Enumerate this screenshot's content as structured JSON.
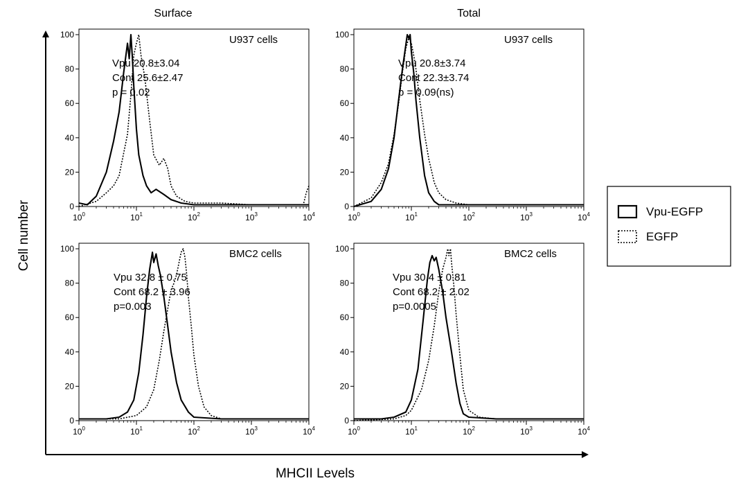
{
  "figure": {
    "column_titles": [
      "Surface",
      "Total"
    ],
    "y_axis_title": "Cell number",
    "x_axis_title": "MHCII Levels",
    "legend": [
      {
        "label": "Vpu-EGFP",
        "style": "solid"
      },
      {
        "label": "EGFP",
        "style": "dotted"
      }
    ],
    "colors": {
      "line": "#000000",
      "background": "#ffffff"
    }
  },
  "chart_data": [
    {
      "type": "line",
      "column_title": "Surface",
      "title": "U937 cells",
      "annotations": [
        "Vpu   20.8±3.04",
        "Cont   25.6±2.47",
        "p = 0.02"
      ],
      "x_scale": "log",
      "xlim": [
        1,
        10000
      ],
      "ylim": [
        0,
        100
      ],
      "x_tick_labels": [
        "10^0",
        "10^1",
        "10^2",
        "10^3",
        "10^4"
      ],
      "y_tick_labels": [
        "0",
        "20",
        "40",
        "60",
        "80",
        "100"
      ],
      "series": [
        {
          "legend": "Vpu-EGFP",
          "style": "solid",
          "x": [
            1,
            1.4,
            2,
            3,
            4,
            5,
            6,
            7,
            7.5,
            8,
            8.5,
            9,
            10,
            11,
            13,
            15,
            18,
            22,
            30,
            40,
            60,
            100,
            300,
            1000,
            10000
          ],
          "y": [
            2,
            1,
            6,
            20,
            38,
            55,
            78,
            95,
            86,
            100,
            87,
            70,
            45,
            30,
            18,
            12,
            8,
            10,
            7,
            4,
            2,
            1,
            1,
            1,
            1
          ]
        },
        {
          "legend": "EGFP",
          "style": "dotted",
          "x": [
            1,
            2,
            3,
            4,
            5,
            7,
            8,
            9,
            10,
            11,
            12,
            14,
            17,
            20,
            25,
            30,
            35,
            40,
            50,
            70,
            100,
            300,
            1000,
            8000,
            9000,
            10000
          ],
          "y": [
            0,
            3,
            8,
            12,
            18,
            42,
            65,
            88,
            95,
            100,
            88,
            75,
            50,
            30,
            24,
            28,
            22,
            12,
            6,
            3,
            2,
            2,
            1,
            1,
            8,
            12
          ]
        }
      ]
    },
    {
      "type": "line",
      "column_title": "Total",
      "title": "U937 cells",
      "annotations": [
        "Vpu   20.8±3.74",
        "Cont   22.3±3.74",
        "p = 0.09(ns)"
      ],
      "x_scale": "log",
      "xlim": [
        1,
        10000
      ],
      "ylim": [
        0,
        100
      ],
      "x_tick_labels": [
        "10^0",
        "10^1",
        "10^2",
        "10^3",
        "10^4"
      ],
      "y_tick_labels": [
        "0",
        "20",
        "40",
        "60",
        "80",
        "100"
      ],
      "series": [
        {
          "legend": "Vpu-EGFP",
          "style": "solid",
          "x": [
            1,
            2,
            3,
            4,
            5,
            6,
            7,
            8,
            8.5,
            9,
            9.5,
            10,
            11,
            12,
            14,
            17,
            20,
            25,
            30,
            50,
            100,
            1000,
            10000
          ],
          "y": [
            0,
            3,
            10,
            22,
            40,
            62,
            80,
            94,
            100,
            98,
            100,
            90,
            78,
            62,
            40,
            18,
            8,
            3,
            1,
            1,
            1,
            1,
            1
          ]
        },
        {
          "legend": "EGFP",
          "style": "dotted",
          "x": [
            1,
            2,
            3,
            4,
            5,
            6,
            7,
            8,
            9,
            10,
            11,
            12,
            14,
            17,
            20,
            25,
            30,
            40,
            60,
            100,
            1000,
            10000
          ],
          "y": [
            0,
            5,
            14,
            25,
            42,
            60,
            78,
            92,
            98,
            95,
            88,
            80,
            62,
            42,
            28,
            14,
            8,
            4,
            2,
            1,
            1,
            1
          ]
        }
      ]
    },
    {
      "type": "line",
      "column_title": "Surface",
      "title": "BMC2 cells",
      "annotations": [
        "Vpu  32.8 ± 0.75",
        "Cont 68.2 ± 3.96",
        "p=0.003"
      ],
      "x_scale": "log",
      "xlim": [
        1,
        10000
      ],
      "ylim": [
        0,
        100
      ],
      "x_tick_labels": [
        "10^0",
        "10^1",
        "10^2",
        "10^3",
        "10^4"
      ],
      "y_tick_labels": [
        "0",
        "20",
        "40",
        "60",
        "80",
        "100"
      ],
      "series": [
        {
          "legend": "Vpu-EGFP",
          "style": "solid",
          "x": [
            1,
            3,
            5,
            7,
            9,
            11,
            13,
            15,
            17,
            19,
            20,
            22,
            24,
            26,
            30,
            35,
            40,
            50,
            60,
            80,
            100,
            300,
            1000,
            10000
          ],
          "y": [
            1,
            1,
            2,
            5,
            12,
            28,
            50,
            72,
            88,
            98,
            92,
            97,
            90,
            85,
            72,
            55,
            40,
            22,
            12,
            5,
            2,
            1,
            1,
            1
          ]
        },
        {
          "legend": "EGFP",
          "style": "dotted",
          "x": [
            1,
            5,
            10,
            15,
            20,
            25,
            30,
            35,
            40,
            45,
            50,
            55,
            60,
            65,
            70,
            75,
            80,
            90,
            100,
            120,
            150,
            200,
            300,
            1000,
            10000
          ],
          "y": [
            1,
            1,
            3,
            8,
            18,
            35,
            52,
            65,
            76,
            80,
            85,
            92,
            98,
            100,
            95,
            85,
            72,
            55,
            38,
            20,
            8,
            3,
            1,
            1,
            1
          ]
        }
      ]
    },
    {
      "type": "line",
      "column_title": "Total",
      "title": "BMC2 cells",
      "annotations": [
        "Vpu  30.4 ± 0.81",
        "Cont 68.2 ± 2.02",
        "p=0.0005"
      ],
      "x_scale": "log",
      "xlim": [
        1,
        10000
      ],
      "ylim": [
        0,
        100
      ],
      "x_tick_labels": [
        "10^0",
        "10^1",
        "10^2",
        "10^3",
        "10^4"
      ],
      "y_tick_labels": [
        "0",
        "20",
        "40",
        "60",
        "80",
        "100"
      ],
      "series": [
        {
          "legend": "Vpu-EGFP",
          "style": "solid",
          "x": [
            1,
            3,
            5,
            8,
            10,
            13,
            16,
            19,
            21,
            23,
            25,
            27,
            30,
            35,
            40,
            50,
            60,
            70,
            80,
            100,
            300,
            1000,
            10000
          ],
          "y": [
            1,
            1,
            2,
            5,
            12,
            30,
            58,
            82,
            92,
            96,
            93,
            95,
            88,
            75,
            60,
            40,
            22,
            10,
            4,
            2,
            1,
            1,
            1
          ]
        },
        {
          "legend": "EGFP",
          "style": "dotted",
          "x": [
            1,
            5,
            8,
            10,
            15,
            20,
            25,
            30,
            35,
            40,
            43,
            45,
            48,
            50,
            55,
            60,
            70,
            80,
            100,
            150,
            300,
            1000,
            10000
          ],
          "y": [
            0,
            1,
            3,
            6,
            18,
            35,
            55,
            75,
            88,
            95,
            100,
            96,
            100,
            92,
            78,
            62,
            38,
            18,
            6,
            2,
            1,
            1,
            1
          ]
        }
      ]
    }
  ]
}
